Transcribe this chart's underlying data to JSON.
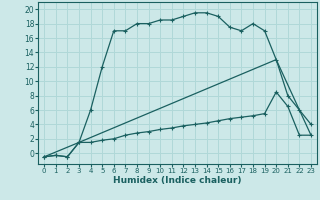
{
  "xlabel": "Humidex (Indice chaleur)",
  "bg_color": "#cce8e8",
  "grid_color": "#b0d8d8",
  "line_color": "#1a6060",
  "xlim": [
    -0.5,
    23.5
  ],
  "ylim": [
    -1.5,
    21
  ],
  "xticks": [
    0,
    1,
    2,
    3,
    4,
    5,
    6,
    7,
    8,
    9,
    10,
    11,
    12,
    13,
    14,
    15,
    16,
    17,
    18,
    19,
    20,
    21,
    22,
    23
  ],
  "yticks": [
    0,
    2,
    4,
    6,
    8,
    10,
    12,
    14,
    16,
    18,
    20
  ],
  "series1_x": [
    0,
    1,
    2,
    3,
    4,
    5,
    6,
    7,
    8,
    9,
    10,
    11,
    12,
    13,
    14,
    15,
    16,
    17,
    18,
    19,
    20,
    21,
    22,
    23
  ],
  "series1_y": [
    -0.5,
    -0.3,
    -0.5,
    1.5,
    6,
    12,
    17,
    17,
    18,
    18,
    18.5,
    18.5,
    19,
    19.5,
    19.5,
    19,
    17.5,
    17,
    18,
    17,
    13,
    8,
    6,
    4
  ],
  "series2_x": [
    0,
    1,
    2,
    3,
    4,
    5,
    6,
    7,
    8,
    9,
    10,
    11,
    12,
    13,
    14,
    15,
    16,
    17,
    18,
    19,
    20,
    21,
    22,
    23
  ],
  "series2_y": [
    -0.5,
    -0.3,
    -0.5,
    1.5,
    1.5,
    1.8,
    2,
    2.5,
    2.8,
    3,
    3.3,
    3.5,
    3.8,
    4,
    4.2,
    4.5,
    4.8,
    5,
    5.2,
    5.5,
    8.5,
    6.5,
    2.5,
    2.5
  ],
  "series3_x": [
    0,
    3,
    20,
    23
  ],
  "series3_y": [
    -0.5,
    1.5,
    13,
    2.5
  ]
}
